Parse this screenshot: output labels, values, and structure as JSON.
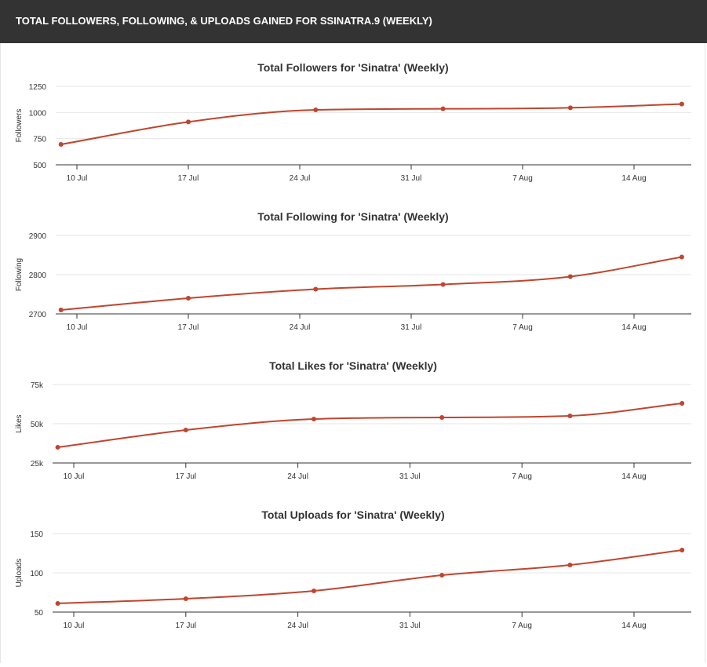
{
  "header": {
    "title": "TOTAL FOLLOWERS, FOLLOWING, & UPLOADS GAINED FOR SSINATRA.9 (WEEKLY)"
  },
  "colors": {
    "header_bg": "#333333",
    "line": "#c0452e",
    "grid": "#e6e6e6",
    "axis": "#333333",
    "text": "#333333"
  },
  "chart_data": [
    {
      "type": "line",
      "title": "Total Followers for 'Sinatra' (Weekly)",
      "ylabel": "Followers",
      "xlabel": "",
      "x_ticks": [
        "10 Jul",
        "17 Jul",
        "24 Jul",
        "31 Jul",
        "7 Aug",
        "14 Aug"
      ],
      "y_ticks": [
        500,
        750,
        1000,
        1250
      ],
      "y_tick_labels": [
        "500",
        "750",
        "1000",
        "1250"
      ],
      "ylim": [
        500,
        1250
      ],
      "grid": true,
      "series": [
        {
          "x": [
            "2017-07-09",
            "2017-07-17",
            "2017-07-25",
            "2017-08-02",
            "2017-08-10",
            "2017-08-17"
          ],
          "values": [
            695,
            910,
            1025,
            1035,
            1045,
            1080
          ]
        }
      ]
    },
    {
      "type": "line",
      "title": "Total Following for 'Sinatra' (Weekly)",
      "ylabel": "Following",
      "xlabel": "",
      "x_ticks": [
        "10 Jul",
        "17 Jul",
        "24 Jul",
        "31 Jul",
        "7 Aug",
        "14 Aug"
      ],
      "y_ticks": [
        2700,
        2800,
        2900
      ],
      "y_tick_labels": [
        "2700",
        "2800",
        "2900"
      ],
      "ylim": [
        2700,
        2900
      ],
      "grid": true,
      "series": [
        {
          "x": [
            "2017-07-09",
            "2017-07-17",
            "2017-07-25",
            "2017-08-02",
            "2017-08-10",
            "2017-08-17"
          ],
          "values": [
            2710,
            2740,
            2763,
            2775,
            2795,
            2845
          ]
        }
      ]
    },
    {
      "type": "line",
      "title": "Total Likes for 'Sinatra' (Weekly)",
      "ylabel": "Likes",
      "xlabel": "",
      "x_ticks": [
        "10 Jul",
        "17 Jul",
        "24 Jul",
        "31 Jul",
        "7 Aug",
        "14 Aug"
      ],
      "y_ticks": [
        25000,
        50000,
        75000
      ],
      "y_tick_labels": [
        "25k",
        "50k",
        "75k"
      ],
      "ylim": [
        25000,
        75000
      ],
      "grid": true,
      "series": [
        {
          "x": [
            "2017-07-09",
            "2017-07-17",
            "2017-07-25",
            "2017-08-02",
            "2017-08-10",
            "2017-08-17"
          ],
          "values": [
            35000,
            46000,
            53000,
            54000,
            55000,
            63000
          ]
        }
      ]
    },
    {
      "type": "line",
      "title": "Total Uploads for 'Sinatra' (Weekly)",
      "ylabel": "Uploads",
      "xlabel": "",
      "x_ticks": [
        "10 Jul",
        "17 Jul",
        "24 Jul",
        "31 Jul",
        "7 Aug",
        "14 Aug"
      ],
      "y_ticks": [
        50,
        100,
        150
      ],
      "y_tick_labels": [
        "50",
        "100",
        "150"
      ],
      "ylim": [
        50,
        150
      ],
      "grid": true,
      "series": [
        {
          "x": [
            "2017-07-09",
            "2017-07-17",
            "2017-07-25",
            "2017-08-02",
            "2017-08-10",
            "2017-08-17"
          ],
          "values": [
            61,
            67,
            77,
            97,
            110,
            129
          ]
        }
      ]
    }
  ]
}
